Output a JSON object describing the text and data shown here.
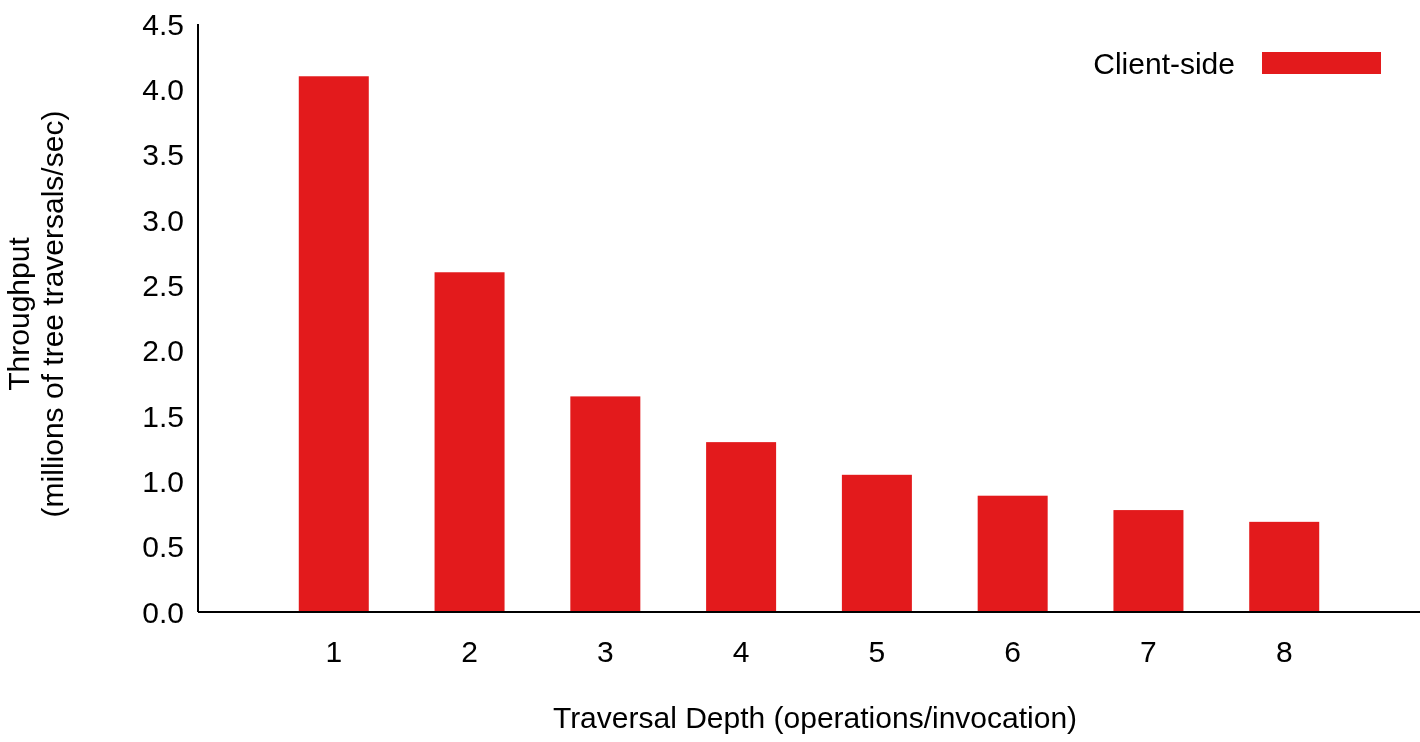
{
  "chart_data": {
    "type": "bar",
    "xlabel": "Traversal Depth (operations/invocation)",
    "ylabel": "Throughput\n(millions of tree traversals/sec)",
    "categories": [
      "1",
      "2",
      "3",
      "4",
      "5",
      "6",
      "7",
      "8"
    ],
    "series": [
      {
        "name": "Client-side",
        "color": "#e31a1c",
        "values": [
          4.1,
          2.6,
          1.65,
          1.3,
          1.05,
          0.89,
          0.78,
          0.69
        ]
      }
    ],
    "ylim": [
      0,
      4.5
    ],
    "yticks": [
      {
        "value": 0,
        "label": "0.0"
      },
      {
        "value": 0.5,
        "label": "0.5"
      },
      {
        "value": 1,
        "label": "1.0"
      },
      {
        "value": 1.5,
        "label": "1.5"
      },
      {
        "value": 2,
        "label": "2.0"
      },
      {
        "value": 2.5,
        "label": "2.5"
      },
      {
        "value": 3,
        "label": "3.0"
      },
      {
        "value": 3.5,
        "label": "3.5"
      },
      {
        "value": 4,
        "label": "4.0"
      },
      {
        "value": 4.5,
        "label": "4.5"
      }
    ],
    "grid": false,
    "legend": "top right"
  }
}
